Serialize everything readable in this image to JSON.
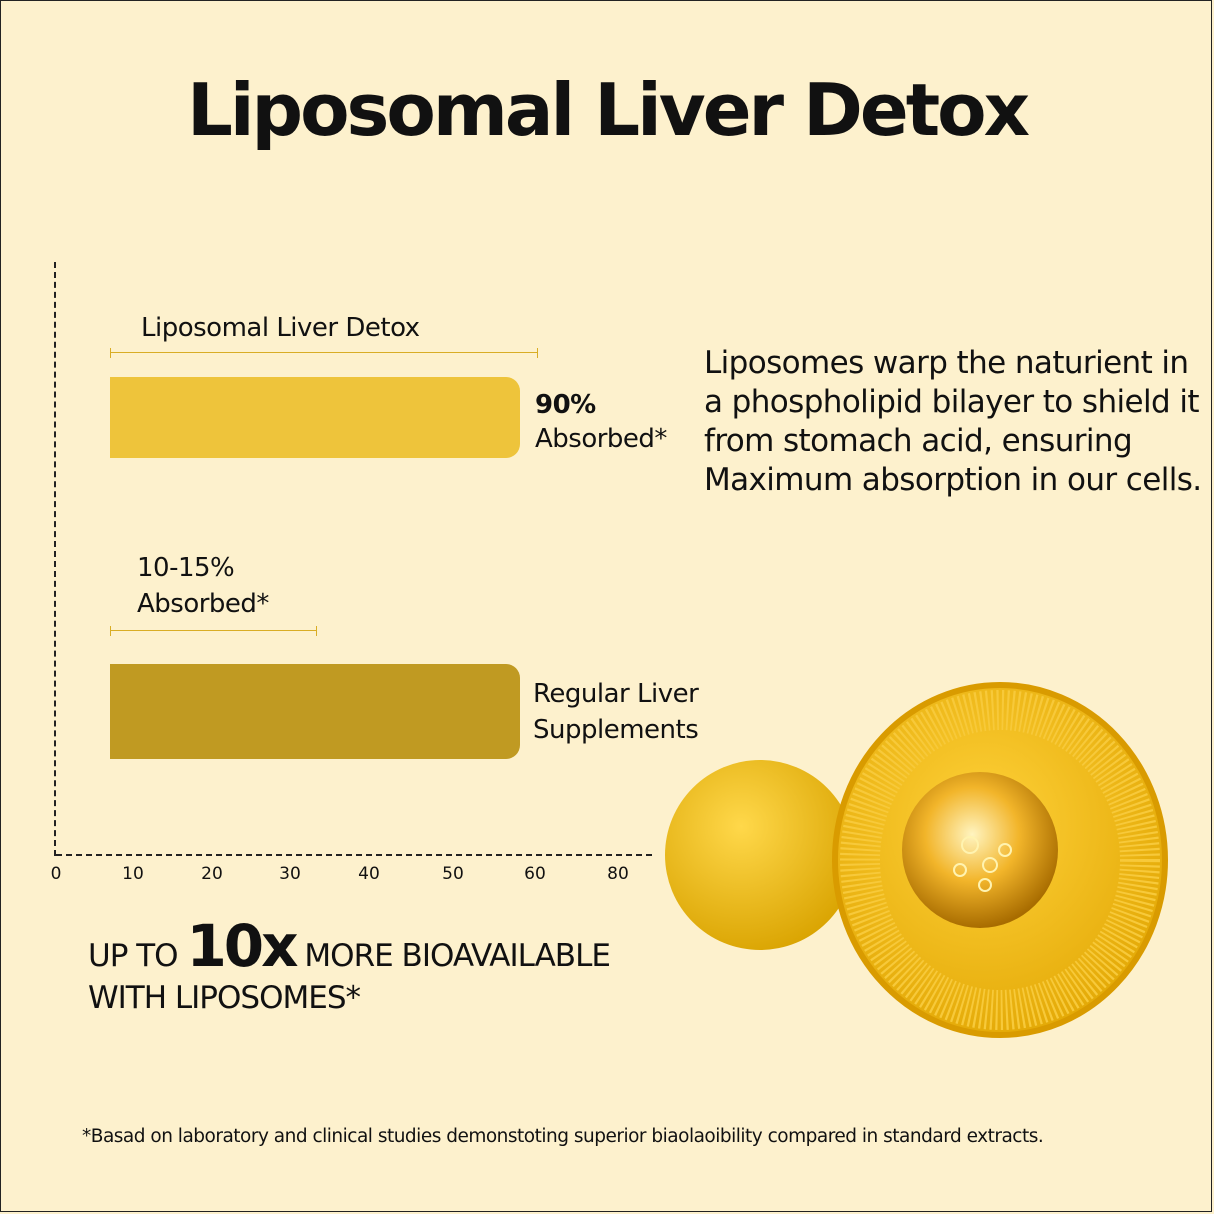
{
  "title": "Liposomal Liver Detox",
  "chart_data": {
    "type": "bar",
    "orientation": "horizontal",
    "categories": [
      "Liposomal Liver Detox",
      "Regular Liver Supplements"
    ],
    "value_labels": [
      {
        "value": "90%",
        "text": "Absorbed*"
      },
      {
        "value": "10-15%",
        "text": "Absorbed*"
      }
    ],
    "x_tick_labels": [
      "0",
      "10",
      "20",
      "30",
      "40",
      "50",
      "60",
      "80"
    ],
    "colors": [
      "#eec43b",
      "#c09a22"
    ],
    "grid": false
  },
  "description": "Liposomes warp  the naturient in a phospholipid bilayer to shield it from stomach acid, ensuring Maximum absorption in our cells.",
  "bioavailability": {
    "prefix": "UP TO",
    "highlight": "10x",
    "suffix": "MORE BIOAVAILABLE",
    "line2": "WITH LIPOSOMES*"
  },
  "footnote": "*Basad on laboratory and clinical studies demonstoting superior biaolaoibility compared in standard extracts.",
  "illustration": "liposome-illustration"
}
